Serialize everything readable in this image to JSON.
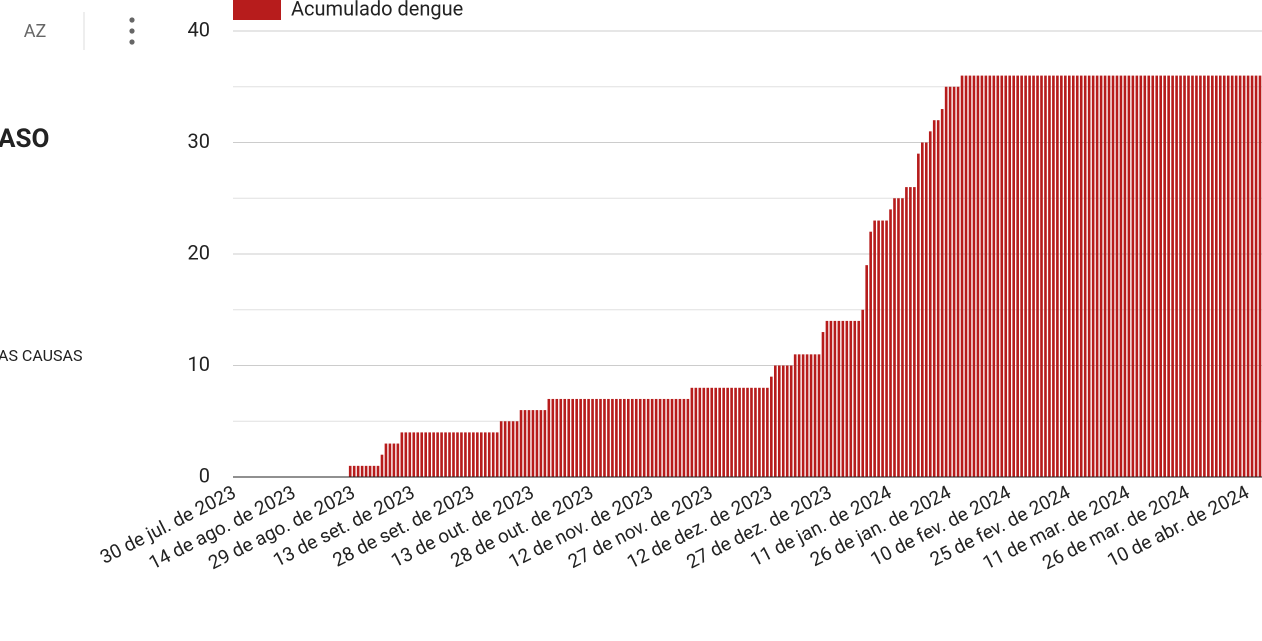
{
  "sidebar": {
    "sort_icon": "AZ",
    "title": "ASO",
    "item": "AS CAUSAS"
  },
  "chart_data": {
    "type": "bar",
    "series": [
      {
        "name": "Acumulado dengue",
        "color": "#b71c1c",
        "values": [
          0,
          0,
          0,
          0,
          0,
          0,
          0,
          0,
          0,
          0,
          0,
          0,
          0,
          0,
          0,
          0,
          0,
          0,
          0,
          0,
          0,
          0,
          0,
          0,
          0,
          0,
          0,
          0,
          0,
          1,
          1,
          1,
          1,
          1,
          1,
          1,
          1,
          2,
          3,
          3,
          3,
          3,
          4,
          4,
          4,
          4,
          4,
          4,
          4,
          4,
          4,
          4,
          4,
          4,
          4,
          4,
          4,
          4,
          4,
          4,
          4,
          4,
          4,
          4,
          4,
          4,
          4,
          5,
          5,
          5,
          5,
          5,
          6,
          6,
          6,
          6,
          6,
          6,
          6,
          7,
          7,
          7,
          7,
          7,
          7,
          7,
          7,
          7,
          7,
          7,
          7,
          7,
          7,
          7,
          7,
          7,
          7,
          7,
          7,
          7,
          7,
          7,
          7,
          7,
          7,
          7,
          7,
          7,
          7,
          7,
          7,
          7,
          7,
          7,
          7,
          8,
          8,
          8,
          8,
          8,
          8,
          8,
          8,
          8,
          8,
          8,
          8,
          8,
          8,
          8,
          8,
          8,
          8,
          8,
          8,
          9,
          10,
          10,
          10,
          10,
          10,
          11,
          11,
          11,
          11,
          11,
          11,
          11,
          13,
          14,
          14,
          14,
          14,
          14,
          14,
          14,
          14,
          14,
          15,
          19,
          22,
          23,
          23,
          23,
          23,
          24,
          25,
          25,
          25,
          26,
          26,
          26,
          29,
          30,
          30,
          31,
          32,
          32,
          33,
          35,
          35,
          35,
          35,
          36,
          36,
          36,
          36,
          36,
          36,
          36,
          36,
          36,
          36,
          36,
          36,
          36,
          36,
          36,
          36,
          36,
          36,
          36,
          36,
          36,
          36,
          36,
          36,
          36,
          36,
          36,
          36,
          36,
          36,
          36,
          36,
          36,
          36,
          36,
          36,
          36,
          36,
          36,
          36,
          36,
          36,
          36,
          36,
          36,
          36,
          36,
          36,
          36,
          36,
          36,
          36,
          36,
          36,
          36,
          36,
          36,
          36,
          36,
          36,
          36,
          36,
          36,
          36,
          36,
          36,
          36,
          36,
          36,
          36,
          36,
          36,
          36,
          36,
          36,
          36
        ]
      }
    ],
    "categories": [
      "30 de jul. de 2023",
      null,
      null,
      null,
      null,
      null,
      null,
      null,
      null,
      null,
      null,
      null,
      null,
      null,
      null,
      "14 de ago. de 2023",
      null,
      null,
      null,
      null,
      null,
      null,
      null,
      null,
      null,
      null,
      null,
      null,
      null,
      null,
      "29 de ago. de 2023",
      null,
      null,
      null,
      null,
      null,
      null,
      null,
      null,
      null,
      null,
      null,
      null,
      null,
      null,
      "13 de set. de 2023",
      null,
      null,
      null,
      null,
      null,
      null,
      null,
      null,
      null,
      null,
      null,
      null,
      null,
      null,
      "28 de set. de 2023",
      null,
      null,
      null,
      null,
      null,
      null,
      null,
      null,
      null,
      null,
      null,
      null,
      null,
      null,
      "13 de out. de 2023",
      null,
      null,
      null,
      null,
      null,
      null,
      null,
      null,
      null,
      null,
      null,
      null,
      null,
      null,
      "28 de out. de 2023",
      null,
      null,
      null,
      null,
      null,
      null,
      null,
      null,
      null,
      null,
      null,
      null,
      null,
      null,
      "12 de nov. de 2023",
      null,
      null,
      null,
      null,
      null,
      null,
      null,
      null,
      null,
      null,
      null,
      null,
      null,
      null,
      "27 de nov. de 2023",
      null,
      null,
      null,
      null,
      null,
      null,
      null,
      null,
      null,
      null,
      null,
      null,
      null,
      null,
      "12 de dez. de 2023",
      null,
      null,
      null,
      null,
      null,
      null,
      null,
      null,
      null,
      null,
      null,
      null,
      null,
      null,
      "27 de dez. de 2023",
      null,
      null,
      null,
      null,
      null,
      null,
      null,
      null,
      null,
      null,
      null,
      null,
      null,
      null,
      "11 de jan. de 2024",
      null,
      null,
      null,
      null,
      null,
      null,
      null,
      null,
      null,
      null,
      null,
      null,
      null,
      null,
      "26 de jan. de 2024",
      null,
      null,
      null,
      null,
      null,
      null,
      null,
      null,
      null,
      null,
      null,
      null,
      null,
      null,
      "10 de fev. de 2024",
      null,
      null,
      null,
      null,
      null,
      null,
      null,
      null,
      null,
      null,
      null,
      null,
      null,
      null,
      "25 de fev. de 2024",
      null,
      null,
      null,
      null,
      null,
      null,
      null,
      null,
      null,
      null,
      null,
      null,
      null,
      null,
      "11 de mar. de 2024",
      null,
      null,
      null,
      null,
      null,
      null,
      null,
      null,
      null,
      null,
      null,
      null,
      null,
      null,
      "26 de mar. de 2024",
      null,
      null,
      null,
      null,
      null,
      null,
      null,
      null,
      null,
      null,
      null,
      null,
      null,
      null,
      "10 de abr. de 2024",
      null,
      null,
      null
    ],
    "ylim": [
      0,
      40
    ],
    "yticks": [
      0,
      10,
      20,
      30,
      40
    ],
    "minor_yticks": [
      5,
      15,
      25,
      35
    ],
    "grid": true,
    "legend": "top"
  }
}
